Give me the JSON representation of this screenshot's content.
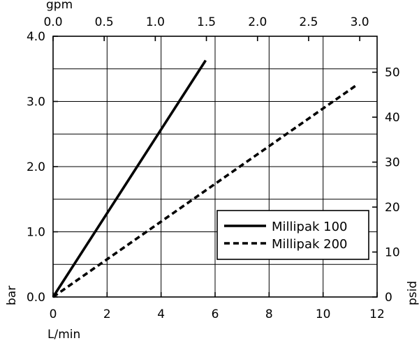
{
  "chart_data": {
    "type": "line",
    "title": "",
    "xlabel": "L/min",
    "ylabel": "bar",
    "x2label": "gpm",
    "y2label": "psid",
    "xlim": [
      0,
      12
    ],
    "ylim": [
      0,
      4
    ],
    "x2lim": [
      0,
      3.17
    ],
    "y2lim": [
      0,
      58
    ],
    "xticks": [
      "0",
      "2",
      "4",
      "6",
      "8",
      "10",
      "12"
    ],
    "yticks": [
      "0.0",
      "1.0",
      "2.0",
      "3.0",
      "4.0"
    ],
    "x2ticks": [
      "0.0",
      "0.5",
      "1.0",
      "1.5",
      "2.0",
      "2.5",
      "3.0"
    ],
    "y2ticks": [
      "0",
      "10",
      "20",
      "30",
      "40",
      "50"
    ],
    "grid": true,
    "legend_position": "lower-right",
    "series": [
      {
        "name": "Millipak 100",
        "style": "solid",
        "color": "#000000",
        "x": [
          0,
          5.65
        ],
        "y": [
          0,
          3.63
        ]
      },
      {
        "name": "Millipak 200",
        "style": "dashed",
        "color": "#000000",
        "x": [
          0,
          11.2
        ],
        "y": [
          0,
          3.24
        ]
      }
    ]
  }
}
